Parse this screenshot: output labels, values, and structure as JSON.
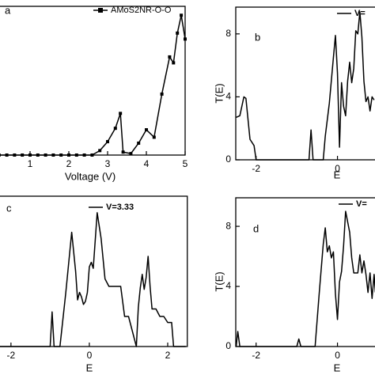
{
  "chart_data": [
    {
      "type": "line",
      "panel_label": "a",
      "xlabel": "Voltage (V)",
      "xlim": [
        0,
        5
      ],
      "ylim": [
        0,
        10
      ],
      "xticks": [
        1,
        2,
        3,
        4,
        5
      ],
      "x": [
        0.2,
        0.4,
        0.6,
        0.8,
        1.0,
        1.2,
        1.4,
        1.6,
        1.8,
        2.0,
        2.2,
        2.4,
        2.6,
        2.8,
        3.0,
        3.2,
        3.33,
        3.4,
        3.6,
        3.8,
        4.0,
        4.2,
        4.4,
        4.6,
        4.7,
        4.8,
        4.9,
        5.0
      ],
      "series": [
        {
          "name": "AMoS2NR-O-O",
          "color": "#000000",
          "marker": "square",
          "values": [
            0,
            0,
            0,
            0,
            0,
            0,
            0,
            0,
            0,
            0,
            0,
            0,
            0,
            0.3,
            0.9,
            1.8,
            2.8,
            0.2,
            0.1,
            0.8,
            1.7,
            1.2,
            4.1,
            6.6,
            6.2,
            8.2,
            9.4,
            7.8
          ]
        }
      ]
    },
    {
      "type": "line",
      "panel_label": "b",
      "xlabel": "E",
      "ylabel": "T(E)",
      "xlim": [
        -2.5,
        1.0
      ],
      "ylim": [
        0,
        9.7
      ],
      "xticks": [
        -2,
        0
      ],
      "yticks": [
        0,
        4,
        8
      ],
      "x": [
        -2.49,
        -2.4,
        -2.3,
        -2.25,
        -2.15,
        -2.05,
        -2.0,
        -0.7,
        -0.65,
        -0.6,
        -0.35,
        -0.3,
        -0.2,
        -0.1,
        -0.05,
        0.0,
        0.05,
        0.1,
        0.15,
        0.2,
        0.25,
        0.3,
        0.35,
        0.4,
        0.45,
        0.5,
        0.55,
        0.6,
        0.65,
        0.7,
        0.75,
        0.8,
        0.85,
        0.9
      ],
      "series": [
        {
          "name": "V=",
          "color": "#000000",
          "values": [
            2.7,
            2.8,
            4.0,
            3.9,
            1.3,
            0.9,
            0,
            0,
            1.9,
            0,
            0,
            1.5,
            3.6,
            6.5,
            7.9,
            5.5,
            0.8,
            4.9,
            3.4,
            2.8,
            5.0,
            6.2,
            4.9,
            5.8,
            8.2,
            8.0,
            9.4,
            7.8,
            5.0,
            3.7,
            4.0,
            3.1,
            4.0,
            3.8
          ]
        }
      ]
    },
    {
      "type": "line",
      "panel_label": "c",
      "xlabel": "E",
      "xlim": [
        -2.3,
        2.5
      ],
      "ylim": [
        0,
        10
      ],
      "xticks": [
        -2,
        0,
        2
      ],
      "x": [
        -2.28,
        -1.0,
        -0.95,
        -0.9,
        -0.75,
        -0.6,
        -0.45,
        -0.35,
        -0.3,
        -0.25,
        -0.2,
        -0.15,
        -0.1,
        -0.05,
        0.0,
        0.05,
        0.1,
        0.2,
        0.3,
        0.4,
        0.5,
        0.8,
        0.9,
        1.0,
        1.2,
        1.25,
        1.3,
        1.35,
        1.4,
        1.45,
        1.5,
        1.55,
        1.6,
        1.7,
        1.8,
        1.9,
        2.0,
        2.1,
        2.15,
        2.46
      ],
      "series": [
        {
          "name": "V=3.33",
          "color": "#000000",
          "values": [
            0,
            0,
            2.3,
            0,
            0,
            3.6,
            7.6,
            5.0,
            3.1,
            3.6,
            3.3,
            2.8,
            3.0,
            3.6,
            5.3,
            5.6,
            5.2,
            8.9,
            7.2,
            4.5,
            4.0,
            4.0,
            2.0,
            2.0,
            0,
            2.6,
            3.9,
            4.8,
            3.8,
            4.6,
            6.0,
            4.0,
            2.5,
            2.5,
            2.0,
            2.0,
            1.6,
            1.6,
            0,
            0
          ]
        }
      ]
    },
    {
      "type": "line",
      "panel_label": "d",
      "xlabel": "E",
      "ylabel": "T(E)",
      "xlim": [
        -2.5,
        1.0
      ],
      "ylim": [
        0,
        9.9
      ],
      "xticks": [
        -2,
        0
      ],
      "yticks": [
        0,
        4,
        8
      ],
      "x": [
        -2.49,
        -2.45,
        -2.4,
        -1.0,
        -0.95,
        -0.9,
        -0.55,
        -0.45,
        -0.35,
        -0.3,
        -0.25,
        -0.2,
        -0.15,
        -0.1,
        -0.05,
        0.0,
        0.05,
        0.1,
        0.15,
        0.2,
        0.3,
        0.35,
        0.4,
        0.5,
        0.55,
        0.6,
        0.65,
        0.7,
        0.75,
        0.8,
        0.85,
        0.9,
        0.93
      ],
      "series": [
        {
          "name": "V=",
          "color": "#000000",
          "values": [
            0,
            1.0,
            0,
            0,
            0.5,
            0,
            0,
            3.5,
            6.8,
            7.9,
            6.3,
            6.7,
            5.9,
            6.3,
            3.5,
            1.8,
            4.3,
            5.0,
            6.7,
            9.0,
            7.6,
            5.9,
            4.9,
            4.9,
            6.1,
            4.9,
            5.7,
            4.8,
            3.6,
            4.9,
            3.2,
            4.8,
            3.6
          ]
        }
      ]
    }
  ]
}
